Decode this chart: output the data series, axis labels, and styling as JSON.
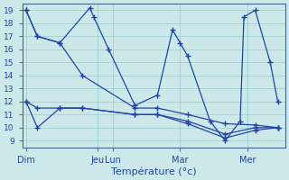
{
  "bg_color": "#cce8e8",
  "grid_color": "#99cccc",
  "line_color": "#2244aa",
  "xlabel": "Température (°c)",
  "yticks": [
    9,
    10,
    11,
    12,
    13,
    14,
    15,
    16,
    17,
    18,
    19
  ],
  "day_labels": [
    "Dim",
    "Jeu",
    "Lun",
    "Mar",
    "Mer"
  ],
  "day_x": [
    0,
    9.5,
    11.5,
    20.5,
    29.5
  ],
  "lines": [
    {
      "x": [
        0,
        1.5,
        4.5,
        8.5,
        9.0,
        11.0,
        14.5,
        17.5,
        19.5,
        20.5,
        21.5,
        24.5,
        26.5,
        28.5,
        29.0,
        30.5,
        32.5,
        33.5
      ],
      "y": [
        19,
        17,
        16.5,
        19.2,
        18.5,
        16.0,
        11.7,
        12.5,
        17.5,
        16.5,
        15.5,
        10.5,
        9.0,
        10.5,
        18.5,
        19.0,
        15.0,
        12.0
      ]
    },
    {
      "x": [
        0,
        1.5,
        4.5,
        7.5,
        14.5,
        17.5,
        21.5,
        26.5,
        30.5,
        33.5
      ],
      "y": [
        19,
        17.0,
        16.5,
        14.0,
        11.5,
        11.5,
        11.0,
        10.3,
        10.2,
        10.0
      ]
    },
    {
      "x": [
        0,
        1.5,
        4.5,
        7.5,
        14.5,
        17.5,
        21.5,
        26.5,
        30.5,
        33.5
      ],
      "y": [
        12,
        11.5,
        11.5,
        11.5,
        11.0,
        11.0,
        10.5,
        9.5,
        10.0,
        10.0
      ]
    },
    {
      "x": [
        0,
        1.5,
        4.5,
        7.5,
        14.5,
        17.5,
        21.5,
        26.5,
        30.5,
        33.5
      ],
      "y": [
        12,
        10.0,
        11.5,
        11.5,
        11.0,
        11.0,
        10.3,
        9.2,
        9.8,
        10.0
      ]
    }
  ],
  "xlim": [
    -0.5,
    34.5
  ],
  "ylim": [
    8.5,
    19.5
  ],
  "figsize": [
    3.2,
    2.0
  ],
  "dpi": 100
}
